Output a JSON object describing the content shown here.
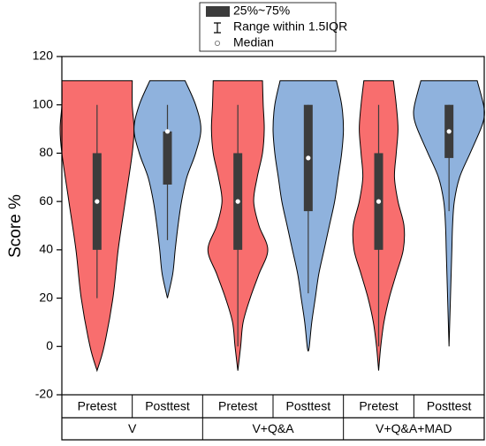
{
  "chart_data": {
    "type": "violin",
    "ylabel": "Score %",
    "ylim": [
      -20,
      120
    ],
    "yticks": [
      -20,
      0,
      20,
      40,
      60,
      80,
      100,
      120
    ],
    "legend": {
      "box": "25%~75%",
      "whisker": "Range within 1.5IQR",
      "median": "Median"
    },
    "colors": {
      "Pretest": "#f86e6e",
      "Posttest": "#8fb2dd",
      "box": "#3c3c3c"
    },
    "groups": [
      {
        "name": "V",
        "violins": [
          {
            "condition": "Pretest",
            "q1": 40,
            "q3": 80,
            "median": 60,
            "whisker_low": 20,
            "whisker_high": 100,
            "density_y": [
              110,
              100,
              90,
              80,
              60,
              40,
              20,
              0,
              -10
            ],
            "density": [
              1.0,
              1.0,
              1.05,
              1.0,
              0.8,
              0.6,
              0.45,
              0.2,
              0
            ]
          },
          {
            "condition": "Posttest",
            "q1": 67,
            "q3": 89,
            "median": 89,
            "whisker_low": 44,
            "whisker_high": 100,
            "density_y": [
              110,
              100,
              90,
              80,
              70,
              60,
              50,
              40,
              30,
              20
            ],
            "density": [
              0.5,
              0.8,
              0.95,
              0.8,
              0.55,
              0.4,
              0.3,
              0.22,
              0.15,
              0
            ]
          }
        ]
      },
      {
        "name": "V+Q&A",
        "violins": [
          {
            "condition": "Pretest",
            "q1": 40,
            "q3": 80,
            "median": 60,
            "whisker_low": 0,
            "whisker_high": 100,
            "density_y": [
              110,
              100,
              90,
              80,
              70,
              60,
              50,
              40,
              30,
              20,
              10,
              0,
              -10
            ],
            "density": [
              0.7,
              0.72,
              0.75,
              0.7,
              0.55,
              0.45,
              0.6,
              0.85,
              0.6,
              0.35,
              0.15,
              0.08,
              0
            ]
          },
          {
            "condition": "Posttest",
            "q1": 56,
            "q3": 100,
            "median": 78,
            "whisker_low": 22,
            "whisker_high": 100,
            "density_y": [
              110,
              100,
              90,
              80,
              70,
              60,
              50,
              40,
              30,
              20,
              10,
              0,
              -2
            ],
            "density": [
              0.8,
              0.95,
              1.0,
              0.95,
              0.85,
              0.75,
              0.6,
              0.45,
              0.3,
              0.2,
              0.1,
              0.03,
              0
            ]
          }
        ]
      },
      {
        "name": "V+Q&A+MAD",
        "violins": [
          {
            "condition": "Pretest",
            "q1": 40,
            "q3": 80,
            "median": 60,
            "whisker_low": 0,
            "whisker_high": 100,
            "density_y": [
              110,
              100,
              90,
              80,
              70,
              60,
              50,
              40,
              30,
              20,
              10,
              0,
              -10
            ],
            "density": [
              0.42,
              0.5,
              0.55,
              0.5,
              0.45,
              0.55,
              0.72,
              0.7,
              0.5,
              0.3,
              0.15,
              0.06,
              0
            ]
          },
          {
            "condition": "Posttest",
            "q1": 78,
            "q3": 100,
            "median": 89,
            "whisker_low": 56,
            "whisker_high": 100,
            "density_y": [
              110,
              100,
              95,
              90,
              80,
              70,
              60,
              50,
              40,
              30,
              20,
              10,
              0
            ],
            "density": [
              0.8,
              0.98,
              1.0,
              0.9,
              0.6,
              0.3,
              0.15,
              0.1,
              0.08,
              0.06,
              0.04,
              0.02,
              0
            ]
          }
        ]
      }
    ]
  }
}
